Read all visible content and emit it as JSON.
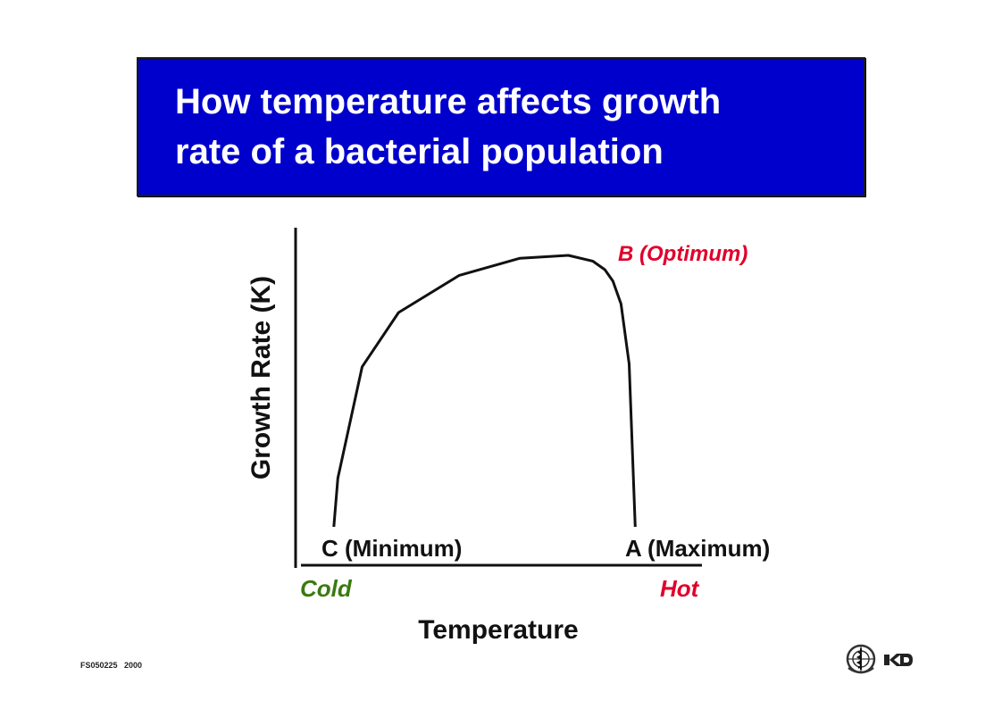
{
  "title": {
    "line1": "How temperature affects growth",
    "line2": "rate of a bacterial population"
  },
  "footer": {
    "code": "FS050225   2000"
  },
  "colors": {
    "title_bg": "#0000cc",
    "title_text": "#ffffff",
    "cold": "#3a7a10",
    "hot": "#e0002a",
    "optimum": "#e0002a",
    "curve": "#111111"
  },
  "chart_data": {
    "type": "line",
    "title": "",
    "xlabel": "Temperature",
    "ylabel": "Growth Rate (K)",
    "x_tick_labels": {
      "left": "Cold",
      "right": "Hot"
    },
    "xlim": [
      0,
      100
    ],
    "ylim": [
      0,
      100
    ],
    "grid": false,
    "series": [
      {
        "x": [
          9,
          10,
          16,
          25,
          40,
          55,
          67,
          73,
          76,
          78,
          80,
          82,
          83.5
        ],
        "y": [
          0,
          17,
          56,
          75,
          88,
          94,
          95,
          93,
          90,
          86,
          78,
          57,
          0
        ]
      }
    ],
    "annotations": [
      {
        "text": "C (Minimum)",
        "x": 9,
        "y": 0
      },
      {
        "text": "A (Maximum)",
        "x": 83.5,
        "y": 0
      },
      {
        "text": "B (Optimum)",
        "x": 76,
        "y": 90
      }
    ]
  },
  "logos": [
    {
      "name": "who-emblem-icon"
    },
    {
      "name": "partner-logo-icon"
    }
  ]
}
